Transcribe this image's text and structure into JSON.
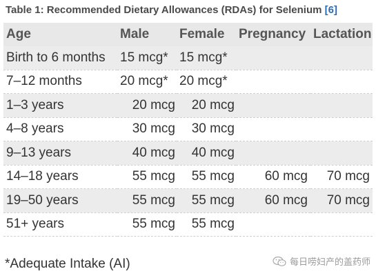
{
  "caption": {
    "text": "Table 1: Recommended Dietary Allowances (RDAs) for Selenium ",
    "ref": "[6]"
  },
  "table": {
    "headers": [
      "Age",
      "Male",
      "Female",
      "Pregnancy",
      "Lactation"
    ],
    "rows": [
      [
        "Birth to 6 months",
        "15 mcg*",
        "15 mcg*",
        "",
        ""
      ],
      [
        "7–12 months",
        "20 mcg*",
        "20 mcg*",
        "",
        ""
      ],
      [
        "1–3 years",
        "20 mcg",
        "20 mcg",
        "",
        ""
      ],
      [
        "4–8 years",
        "30 mcg",
        "30 mcg",
        "",
        ""
      ],
      [
        "9–13 years",
        "40 mcg",
        "40 mcg",
        "",
        ""
      ],
      [
        "14–18 years",
        "55 mcg",
        "55 mcg",
        "60 mcg",
        "70 mcg"
      ],
      [
        "19–50 years",
        "55 mcg",
        "55 mcg",
        "60 mcg",
        "70 mcg"
      ],
      [
        "51+ years",
        "55 mcg",
        "55 mcg",
        "",
        ""
      ]
    ]
  },
  "footnote": "*Adequate Intake (AI)",
  "watermark": {
    "text": "每日唠妇产的盖药师",
    "icon": "wechat-icon"
  }
}
